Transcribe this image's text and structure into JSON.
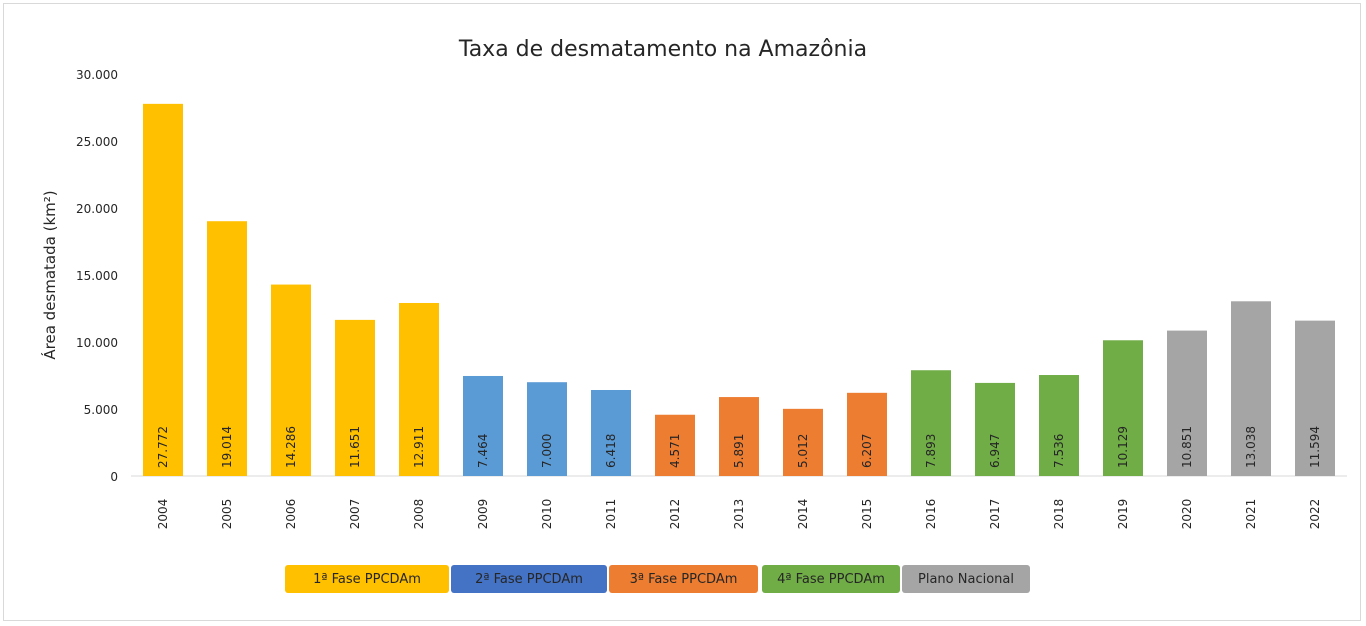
{
  "chart_data": {
    "type": "bar",
    "title": "Taxa de desmatamento na Amazônia",
    "xlabel": "",
    "ylabel": "Área desmatada (km²)",
    "ylim": [
      0,
      30000
    ],
    "yticks": [
      0,
      5000,
      10000,
      15000,
      20000,
      25000,
      30000
    ],
    "ytick_labels": [
      "0",
      "5.000",
      "10.000",
      "15.000",
      "20.000",
      "25.000",
      "30.000"
    ],
    "grid": false,
    "categories": [
      "2004",
      "2005",
      "2006",
      "2007",
      "2008",
      "2009",
      "2010",
      "2011",
      "2012",
      "2013",
      "2014",
      "2015",
      "2016",
      "2017",
      "2018",
      "2019",
      "2020",
      "2021",
      "2022"
    ],
    "values": [
      27772,
      19014,
      14286,
      11651,
      12911,
      7464,
      7000,
      6418,
      4571,
      5891,
      5012,
      6207,
      7893,
      6947,
      7536,
      10129,
      10851,
      13038,
      11594
    ],
    "data_labels": [
      "27.772",
      "19.014",
      "14.286",
      "11.651",
      "12.911",
      "7.464",
      "7.000",
      "6.418",
      "4.571",
      "5.891",
      "5.012",
      "6.207",
      "7.893",
      "6.947",
      "7.536",
      "10.129",
      "10.851",
      "13.038",
      "11.594"
    ],
    "phase_index": [
      0,
      0,
      0,
      0,
      0,
      1,
      1,
      1,
      2,
      2,
      2,
      2,
      3,
      3,
      3,
      3,
      4,
      4,
      4
    ],
    "phases": [
      {
        "name": "1ª Fase PPCDAm",
        "color": "#FFC000",
        "legend_color": "#FFC000"
      },
      {
        "name": "2ª Fase PPCDAm",
        "color": "#5B9BD5",
        "legend_color": "#4472C4"
      },
      {
        "name": "3ª Fase PPCDAm",
        "color": "#ED7D31",
        "legend_color": "#ED7D31"
      },
      {
        "name": "4ª Fase PPCDAm",
        "color": "#70AD47",
        "legend_color": "#70AD47"
      },
      {
        "name": "Plano Nacional",
        "color": "#A5A5A5",
        "legend_color": "#A5A5A5"
      }
    ],
    "legend_position": "bottom"
  }
}
